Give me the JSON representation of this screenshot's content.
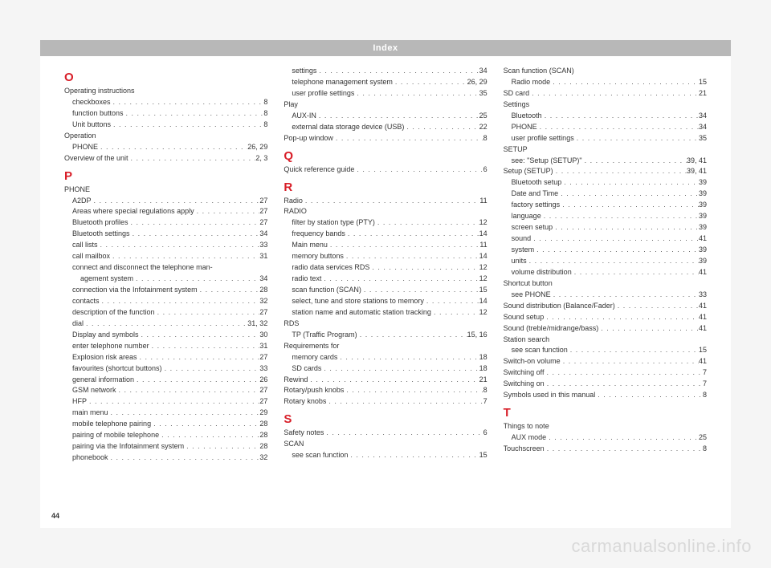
{
  "header": "Index",
  "page_number": "44",
  "watermark": "carmanualsonline.info",
  "columns": [
    [
      {
        "type": "letter",
        "text": "O"
      },
      {
        "type": "entry",
        "level": 0,
        "label": "Operating instructions",
        "page": ""
      },
      {
        "type": "entry",
        "level": 1,
        "label": "checkboxes",
        "page": "8"
      },
      {
        "type": "entry",
        "level": 1,
        "label": "function buttons",
        "page": "8"
      },
      {
        "type": "entry",
        "level": 1,
        "label": "Unit buttons",
        "page": "8"
      },
      {
        "type": "entry",
        "level": 0,
        "label": "Operation",
        "page": ""
      },
      {
        "type": "entry",
        "level": 1,
        "label": "PHONE",
        "page": "26, 29"
      },
      {
        "type": "entry",
        "level": 0,
        "label": "Overview of the unit",
        "page": "2, 3"
      },
      {
        "type": "letter",
        "text": "P"
      },
      {
        "type": "entry",
        "level": 0,
        "label": "PHONE",
        "page": ""
      },
      {
        "type": "entry",
        "level": 1,
        "label": "A2DP",
        "page": "27"
      },
      {
        "type": "entry",
        "level": 1,
        "label": "Areas where special regulations apply",
        "page": "27"
      },
      {
        "type": "entry",
        "level": 1,
        "label": "Bluetooth profiles",
        "page": "27"
      },
      {
        "type": "entry",
        "level": 1,
        "label": "Bluetooth settings",
        "page": "34"
      },
      {
        "type": "entry",
        "level": 1,
        "label": "call lists",
        "page": "33"
      },
      {
        "type": "entry",
        "level": 1,
        "label": "call mailbox",
        "page": "31"
      },
      {
        "type": "entry",
        "level": 1,
        "label": "connect and disconnect the telephone man-",
        "page": ""
      },
      {
        "type": "entry",
        "level": 2,
        "label": "agement system",
        "page": "34"
      },
      {
        "type": "entry",
        "level": 1,
        "label": "connection via the Infotainment system",
        "page": "28"
      },
      {
        "type": "entry",
        "level": 1,
        "label": "contacts",
        "page": "32"
      },
      {
        "type": "entry",
        "level": 1,
        "label": "description of the function",
        "page": "27"
      },
      {
        "type": "entry",
        "level": 1,
        "label": "dial",
        "page": "31, 32"
      },
      {
        "type": "entry",
        "level": 1,
        "label": "Display and symbols",
        "page": "30"
      },
      {
        "type": "entry",
        "level": 1,
        "label": "enter telephone number",
        "page": "31"
      },
      {
        "type": "entry",
        "level": 1,
        "label": "Explosion risk areas",
        "page": "27"
      },
      {
        "type": "entry",
        "level": 1,
        "label": "favourites (shortcut buttons)",
        "page": "33"
      },
      {
        "type": "entry",
        "level": 1,
        "label": "general information",
        "page": "26"
      },
      {
        "type": "entry",
        "level": 1,
        "label": "GSM network",
        "page": "27"
      },
      {
        "type": "entry",
        "level": 1,
        "label": "HFP",
        "page": "27"
      },
      {
        "type": "entry",
        "level": 1,
        "label": "main menu",
        "page": "29"
      },
      {
        "type": "entry",
        "level": 1,
        "label": "mobile telephone pairing",
        "page": "28"
      },
      {
        "type": "entry",
        "level": 1,
        "label": "pairing of mobile telephone",
        "page": "28"
      },
      {
        "type": "entry",
        "level": 1,
        "label": "pairing via the Infotainment system",
        "page": "28"
      },
      {
        "type": "entry",
        "level": 1,
        "label": "phonebook",
        "page": "32"
      }
    ],
    [
      {
        "type": "entry",
        "level": 1,
        "label": "settings",
        "page": "34"
      },
      {
        "type": "entry",
        "level": 1,
        "label": "telephone management system",
        "page": "26, 29"
      },
      {
        "type": "entry",
        "level": 1,
        "label": "user profile settings",
        "page": "35"
      },
      {
        "type": "entry",
        "level": 0,
        "label": "Play",
        "page": ""
      },
      {
        "type": "entry",
        "level": 1,
        "label": "AUX-IN",
        "page": "25"
      },
      {
        "type": "entry",
        "level": 1,
        "label": "external data storage device (USB)",
        "page": "22"
      },
      {
        "type": "entry",
        "level": 0,
        "label": "Pop-up window",
        "page": "8"
      },
      {
        "type": "letter",
        "text": "Q"
      },
      {
        "type": "entry",
        "level": 0,
        "label": "Quick reference guide",
        "page": "6"
      },
      {
        "type": "letter",
        "text": "R"
      },
      {
        "type": "entry",
        "level": 0,
        "label": "Radio",
        "page": "11"
      },
      {
        "type": "entry",
        "level": 0,
        "label": "RADIO",
        "page": ""
      },
      {
        "type": "entry",
        "level": 1,
        "label": "filter by station type (PTY)",
        "page": "12"
      },
      {
        "type": "entry",
        "level": 1,
        "label": "frequency bands",
        "page": "14"
      },
      {
        "type": "entry",
        "level": 1,
        "label": "Main menu",
        "page": "11"
      },
      {
        "type": "entry",
        "level": 1,
        "label": "memory buttons",
        "page": "14"
      },
      {
        "type": "entry",
        "level": 1,
        "label": "radio data services RDS",
        "page": "12"
      },
      {
        "type": "entry",
        "level": 1,
        "label": "radio text",
        "page": "12"
      },
      {
        "type": "entry",
        "level": 1,
        "label": "scan function (SCAN)",
        "page": "15"
      },
      {
        "type": "entry",
        "level": 1,
        "label": "select, tune and store stations to memory",
        "page": "14"
      },
      {
        "type": "entry",
        "level": 1,
        "label": "station name and automatic station tracking",
        "page": "12"
      },
      {
        "type": "entry",
        "level": 0,
        "label": "RDS",
        "page": ""
      },
      {
        "type": "entry",
        "level": 1,
        "label": "TP (Traffic Program)",
        "page": "15, 16"
      },
      {
        "type": "entry",
        "level": 0,
        "label": "Requirements for",
        "page": ""
      },
      {
        "type": "entry",
        "level": 1,
        "label": "memory cards",
        "page": "18"
      },
      {
        "type": "entry",
        "level": 1,
        "label": "SD cards",
        "page": "18"
      },
      {
        "type": "entry",
        "level": 0,
        "label": "Rewind",
        "page": "21"
      },
      {
        "type": "entry",
        "level": 0,
        "label": "Rotary/push knobs",
        "page": "8"
      },
      {
        "type": "entry",
        "level": 0,
        "label": "Rotary knobs",
        "page": "7"
      },
      {
        "type": "letter",
        "text": "S"
      },
      {
        "type": "entry",
        "level": 0,
        "label": "Safety notes",
        "page": "6"
      },
      {
        "type": "entry",
        "level": 0,
        "label": "SCAN",
        "page": ""
      },
      {
        "type": "entry",
        "level": 1,
        "label": "see scan function",
        "page": "15"
      }
    ],
    [
      {
        "type": "entry",
        "level": 0,
        "label": "Scan function (SCAN)",
        "page": ""
      },
      {
        "type": "entry",
        "level": 1,
        "label": "Radio mode",
        "page": "15"
      },
      {
        "type": "entry",
        "level": 0,
        "label": "SD card",
        "page": "21"
      },
      {
        "type": "entry",
        "level": 0,
        "label": "Settings",
        "page": ""
      },
      {
        "type": "entry",
        "level": 1,
        "label": "Bluetooth",
        "page": "34"
      },
      {
        "type": "entry",
        "level": 1,
        "label": "PHONE",
        "page": "34"
      },
      {
        "type": "entry",
        "level": 1,
        "label": "user profile settings",
        "page": "35"
      },
      {
        "type": "entry",
        "level": 0,
        "label": "SETUP",
        "page": ""
      },
      {
        "type": "entry",
        "level": 1,
        "label": "see: \"Setup (SETUP)\"",
        "page": "39, 41"
      },
      {
        "type": "entry",
        "level": 0,
        "label": "Setup (SETUP)",
        "page": "39, 41"
      },
      {
        "type": "entry",
        "level": 1,
        "label": "Bluetooth setup",
        "page": "39"
      },
      {
        "type": "entry",
        "level": 1,
        "label": "Date and Time",
        "page": "39"
      },
      {
        "type": "entry",
        "level": 1,
        "label": "factory settings",
        "page": "39"
      },
      {
        "type": "entry",
        "level": 1,
        "label": "language",
        "page": "39"
      },
      {
        "type": "entry",
        "level": 1,
        "label": "screen setup",
        "page": "39"
      },
      {
        "type": "entry",
        "level": 1,
        "label": "sound",
        "page": "41"
      },
      {
        "type": "entry",
        "level": 1,
        "label": "system",
        "page": "39"
      },
      {
        "type": "entry",
        "level": 1,
        "label": "units",
        "page": "39"
      },
      {
        "type": "entry",
        "level": 1,
        "label": "volume distribution",
        "page": "41"
      },
      {
        "type": "entry",
        "level": 0,
        "label": "Shortcut button",
        "page": ""
      },
      {
        "type": "entry",
        "level": 1,
        "label": "see PHONE",
        "page": "33"
      },
      {
        "type": "entry",
        "level": 0,
        "label": "Sound distribution (Balance/Fader)",
        "page": "41"
      },
      {
        "type": "entry",
        "level": 0,
        "label": "Sound setup",
        "page": "41"
      },
      {
        "type": "entry",
        "level": 0,
        "label": "Sound (treble/midrange/bass)",
        "page": "41"
      },
      {
        "type": "entry",
        "level": 0,
        "label": "Station search",
        "page": ""
      },
      {
        "type": "entry",
        "level": 1,
        "label": "see scan function",
        "page": "15"
      },
      {
        "type": "entry",
        "level": 0,
        "label": "Switch-on volume",
        "page": "41"
      },
      {
        "type": "entry",
        "level": 0,
        "label": "Switching off",
        "page": "7"
      },
      {
        "type": "entry",
        "level": 0,
        "label": "Switching on",
        "page": "7"
      },
      {
        "type": "entry",
        "level": 0,
        "label": "Symbols used in this manual",
        "page": "8"
      },
      {
        "type": "letter",
        "text": "T"
      },
      {
        "type": "entry",
        "level": 0,
        "label": "Things to note",
        "page": ""
      },
      {
        "type": "entry",
        "level": 1,
        "label": "AUX mode",
        "page": "25"
      },
      {
        "type": "entry",
        "level": 0,
        "label": "Touchscreen",
        "page": "8"
      }
    ]
  ]
}
